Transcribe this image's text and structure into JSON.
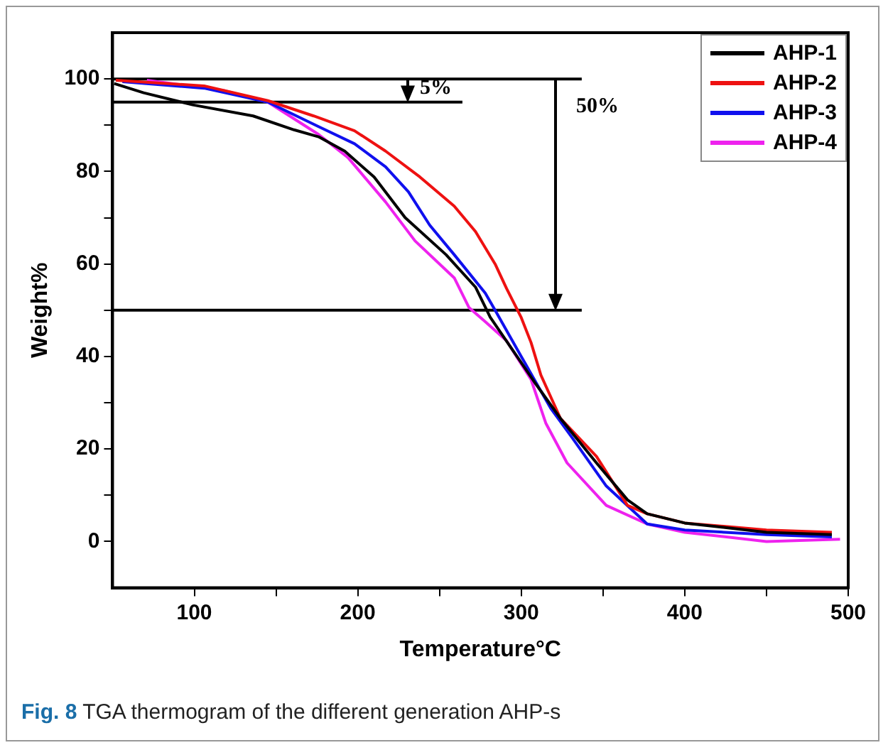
{
  "chart_data": {
    "type": "line",
    "xlabel": "Temperature°C",
    "ylabel": "Weight%",
    "xlim": [
      50,
      500
    ],
    "xticks": [
      100,
      {
        "value": 150,
        "label": null
      },
      200,
      {
        "value": 250,
        "label": null
      },
      300,
      {
        "value": 350,
        "label": null
      },
      400,
      {
        "value": 450,
        "label": null
      },
      500
    ],
    "ylim": [
      -10,
      110
    ],
    "yticks": [
      0,
      {
        "value": 10,
        "label": null
      },
      20,
      {
        "value": 30,
        "label": null
      },
      40,
      {
        "value": 50,
        "label": null
      },
      60,
      {
        "value": 70,
        "label": null
      },
      80,
      {
        "value": 90,
        "label": null
      },
      100
    ],
    "grid": false,
    "legend": "top right",
    "marker": "none",
    "line_style": "solid",
    "series": [
      {
        "name": "AHP-1",
        "color": "#000000",
        "x": [
          51,
          69,
          99,
          136,
          161,
          176,
          192,
          210,
          229,
          254,
          272,
          281,
          309,
          324,
          346,
          365,
          377,
          400,
          450,
          490
        ],
        "values": [
          99,
          97,
          94.4,
          92,
          89,
          87.5,
          84.4,
          78.8,
          70,
          62,
          55,
          48.5,
          34,
          26.6,
          17,
          9,
          6,
          4,
          2,
          1.5
        ]
      },
      {
        "name": "AHP-2",
        "color": "#ee1111",
        "x": [
          52,
          106,
          145,
          173,
          198,
          217,
          238,
          259,
          272,
          284,
          291,
          300,
          306,
          312,
          324,
          346,
          365,
          377,
          400,
          450,
          490
        ],
        "values": [
          99.7,
          98.5,
          95.3,
          92,
          88.8,
          84.4,
          78.8,
          72.5,
          67,
          60,
          54.7,
          48.4,
          43,
          36,
          26.6,
          18.4,
          7.8,
          6,
          4,
          2.5,
          2
        ]
      },
      {
        "name": "AHP-3",
        "color": "#1010ee",
        "x": [
          56,
          106,
          145,
          176,
          198,
          217,
          231,
          244,
          259,
          278,
          284,
          300,
          318,
          331,
          352,
          377,
          400,
          450,
          490
        ],
        "values": [
          99.4,
          98,
          95,
          89.7,
          86,
          81,
          75.6,
          68.4,
          62,
          53.7,
          50,
          40,
          28.8,
          22.5,
          12,
          3.8,
          2.5,
          1.5,
          1
        ]
      },
      {
        "name": "AHP-4",
        "color": "#ee22ee",
        "x": [
          71,
          118,
          145,
          176,
          194,
          217,
          235,
          259,
          268,
          278,
          291,
          306,
          315,
          328,
          352,
          377,
          400,
          450,
          495
        ],
        "values": [
          99.7,
          97.5,
          95,
          88,
          83,
          73.4,
          65,
          57,
          50.6,
          47.5,
          43.4,
          35,
          25.6,
          17,
          7.8,
          3.8,
          2,
          0,
          0.5
        ]
      },
      {
        "color": "#000000",
        "x": [
          50,
          337
        ],
        "values": [
          100,
          100
        ]
      },
      {
        "color": "#000000",
        "x": [
          50,
          264
        ],
        "values": [
          95,
          95
        ]
      },
      {
        "color": "#000000",
        "x": [
          50,
          337
        ],
        "values": [
          50,
          50
        ]
      }
    ],
    "annotations": [
      "5%",
      "50%",
      "Fig. 8 TGA thermogram of the different generation AHP-s"
    ]
  }
}
